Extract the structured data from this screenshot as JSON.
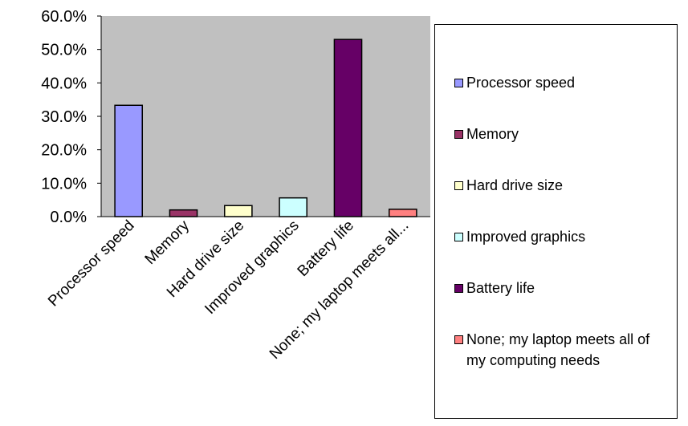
{
  "chart_data": {
    "type": "bar",
    "categories": [
      "Processor speed",
      "Memory",
      "Hard drive size",
      "Improved graphics",
      "Battery life",
      "None; my laptop meets all..."
    ],
    "legend_labels": [
      "Processor speed",
      "Memory",
      "Hard drive size",
      "Improved graphics",
      "Battery life",
      "None; my laptop meets all of my computing needs"
    ],
    "values": [
      33.3,
      2.0,
      3.3,
      5.6,
      53.0,
      2.2
    ],
    "colors": [
      "#9999ff",
      "#993366",
      "#ffffcc",
      "#ccffff",
      "#660066",
      "#ff8080"
    ],
    "ylim": [
      0,
      60
    ],
    "yticks": [
      {
        "value": 0,
        "label": "0.0%"
      },
      {
        "value": 10,
        "label": "10.0%"
      },
      {
        "value": 20,
        "label": "20.0%"
      },
      {
        "value": 30,
        "label": "30.0%"
      },
      {
        "value": 40,
        "label": "40.0%"
      },
      {
        "value": 50,
        "label": "50.0%"
      },
      {
        "value": 60,
        "label": "60.0%"
      }
    ],
    "grid": false
  }
}
